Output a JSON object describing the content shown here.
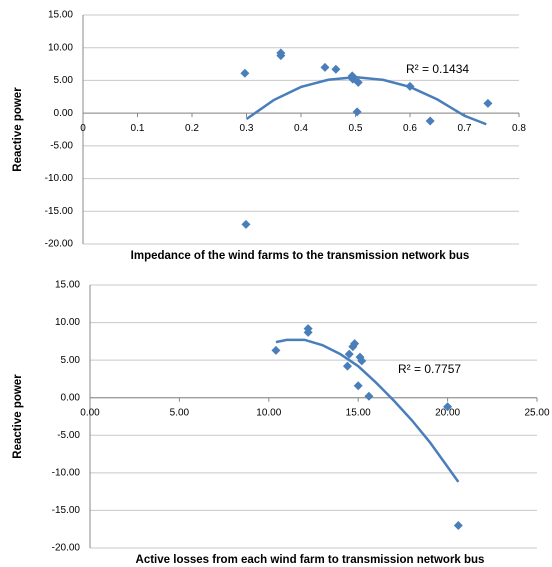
{
  "chart_data": [
    {
      "type": "scatter",
      "xlabel": "Impedance of the wind farms to the transmission network bus",
      "ylabel": "Reactive power",
      "x": [
        0.297,
        0.299,
        0.363,
        0.363,
        0.444,
        0.464,
        0.494,
        0.495,
        0.505,
        0.503,
        0.6,
        0.637,
        0.743
      ],
      "values": [
        6.1,
        -17.0,
        9.2,
        8.8,
        7.0,
        6.7,
        5.7,
        5.2,
        4.7,
        0.2,
        4.1,
        -1.2,
        1.5
      ],
      "color": "#4a7ebb",
      "trendline": {
        "x": [
          0.3,
          0.35,
          0.4,
          0.45,
          0.5,
          0.55,
          0.6,
          0.65,
          0.7,
          0.74
        ],
        "y": [
          -0.9,
          2.0,
          4.0,
          5.1,
          5.5,
          5.1,
          4.0,
          2.1,
          -0.4,
          -1.7
        ]
      },
      "r2_label": "R² = 0.1434",
      "xlim": [
        0,
        0.8
      ],
      "xticks": [
        0,
        0.1,
        0.2,
        0.3,
        0.4,
        0.5,
        0.6,
        0.7,
        0.8
      ],
      "ylim": [
        -20,
        15
      ],
      "yticks": [
        {
          "value": -20,
          "label": "-20.00"
        },
        {
          "value": -15,
          "label": "-15.00"
        },
        {
          "value": -10,
          "label": "-10.00"
        },
        {
          "value": -5,
          "label": "-5.00"
        },
        {
          "value": 0,
          "label": "0.00"
        },
        {
          "value": 5,
          "label": "5.00"
        },
        {
          "value": 10,
          "label": "10.00"
        },
        {
          "value": 15,
          "label": "15.00"
        }
      ],
      "grid": true
    },
    {
      "type": "scatter",
      "xlabel": "Active losses from each wind farm to transmission network bus",
      "ylabel": "Reactive power",
      "x": [
        10.4,
        12.2,
        12.2,
        14.8,
        14.7,
        14.5,
        14.4,
        15.1,
        15.2,
        15.0,
        15.6,
        20.0,
        20.6
      ],
      "values": [
        6.3,
        9.2,
        8.7,
        7.2,
        6.8,
        5.8,
        4.2,
        5.4,
        4.9,
        1.6,
        0.2,
        -1.2,
        -17.0
      ],
      "color": "#4a7ebb",
      "trendline": {
        "x": [
          10.4,
          11,
          12,
          13,
          14,
          15,
          16,
          17,
          18,
          19,
          20,
          20.6
        ],
        "y": [
          7.4,
          7.7,
          7.7,
          7.0,
          5.8,
          4.2,
          2.0,
          -0.4,
          -3.0,
          -5.9,
          -9.2,
          -11.2
        ]
      },
      "r2_label": "R² = 0.7757",
      "xlim": [
        0,
        25
      ],
      "xticks": [
        {
          "value": 0,
          "label": "0.00"
        },
        {
          "value": 5,
          "label": "5.00"
        },
        {
          "value": 10,
          "label": "10.00"
        },
        {
          "value": 15,
          "label": "15.00"
        },
        {
          "value": 20,
          "label": "20.00"
        },
        {
          "value": 25,
          "label": "25.00"
        }
      ],
      "ylim": [
        -20,
        15
      ],
      "yticks": [
        {
          "value": -20,
          "label": "-20.00"
        },
        {
          "value": -15,
          "label": "-15.00"
        },
        {
          "value": -10,
          "label": "-10.00"
        },
        {
          "value": -5,
          "label": "-5.00"
        },
        {
          "value": 0,
          "label": "0.00"
        },
        {
          "value": 5,
          "label": "5.00"
        },
        {
          "value": 10,
          "label": "10.00"
        },
        {
          "value": 15,
          "label": "15.00"
        }
      ],
      "grid": true
    }
  ]
}
